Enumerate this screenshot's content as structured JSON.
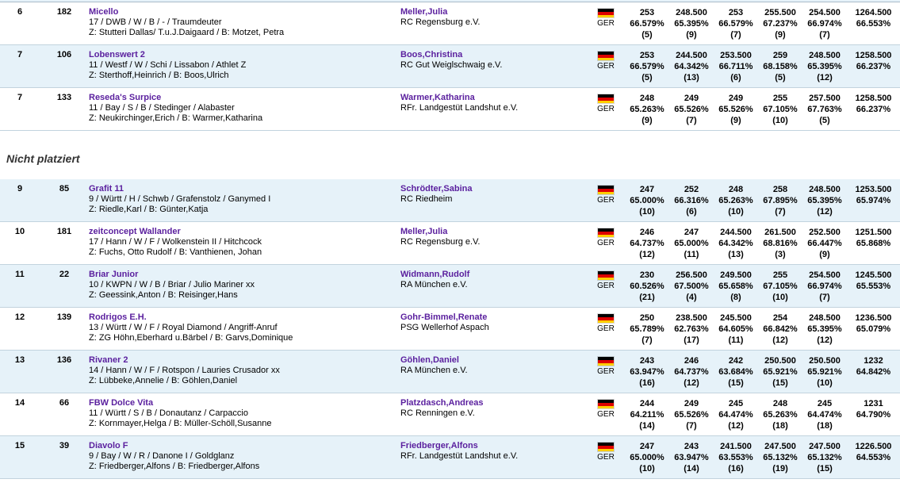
{
  "section_heading": "Nicht platziert",
  "colors": {
    "link_purple": "#5a1f9e",
    "row_shaded_blue": "#e6f2f9",
    "row_border": "#c2d3de",
    "flag_black": "#000000",
    "flag_red": "#dd0000",
    "flag_gold": "#ffce00"
  },
  "icons": {
    "flag": "germany-flag-icon"
  },
  "rows": [
    {
      "section": "placed",
      "shaded": false,
      "rank": "6",
      "number": "182",
      "horse": {
        "name": "Micello",
        "details": "17 / DWB / W / B / - / Traumdeuter",
        "breeding": "Z: Stutteri Dallas/ T.u.J.Daigaard / B: Motzet, Petra"
      },
      "rider": {
        "name": "Meller,Julia",
        "club": "RC Regensburg e.V."
      },
      "country": "GER",
      "scores": [
        {
          "points": "253",
          "percent": "66.579%",
          "rank": "(5)"
        },
        {
          "points": "248.500",
          "percent": "65.395%",
          "rank": "(9)"
        },
        {
          "points": "253",
          "percent": "66.579%",
          "rank": "(7)"
        },
        {
          "points": "255.500",
          "percent": "67.237%",
          "rank": "(9)"
        },
        {
          "points": "254.500",
          "percent": "66.974%",
          "rank": "(7)"
        }
      ],
      "total": {
        "points": "1264.500",
        "percent": "66.553%"
      }
    },
    {
      "section": "placed",
      "shaded": true,
      "rank": "7",
      "number": "106",
      "horse": {
        "name": "Lobenswert 2",
        "details": "11 / Westf / W / Schi / Lissabon / Athlet Z",
        "breeding": "Z: Sterthoff,Heinrich / B: Boos,Ulrich"
      },
      "rider": {
        "name": "Boos,Christina",
        "club": "RC Gut Weiglschwaig e.V."
      },
      "country": "GER",
      "scores": [
        {
          "points": "253",
          "percent": "66.579%",
          "rank": "(5)"
        },
        {
          "points": "244.500",
          "percent": "64.342%",
          "rank": "(13)"
        },
        {
          "points": "253.500",
          "percent": "66.711%",
          "rank": "(6)"
        },
        {
          "points": "259",
          "percent": "68.158%",
          "rank": "(5)"
        },
        {
          "points": "248.500",
          "percent": "65.395%",
          "rank": "(12)"
        }
      ],
      "total": {
        "points": "1258.500",
        "percent": "66.237%"
      }
    },
    {
      "section": "placed",
      "shaded": false,
      "rank": "7",
      "number": "133",
      "horse": {
        "name": "Reseda's Surpice",
        "details": "11 / Bay / S / B / Stedinger / Alabaster",
        "breeding": "Z: Neukirchinger,Erich / B: Warmer,Katharina"
      },
      "rider": {
        "name": "Warmer,Katharina",
        "club": "RFr. Landgestüt Landshut e.V."
      },
      "country": "GER",
      "scores": [
        {
          "points": "248",
          "percent": "65.263%",
          "rank": "(9)"
        },
        {
          "points": "249",
          "percent": "65.526%",
          "rank": "(7)"
        },
        {
          "points": "249",
          "percent": "65.526%",
          "rank": "(9)"
        },
        {
          "points": "255",
          "percent": "67.105%",
          "rank": "(10)"
        },
        {
          "points": "257.500",
          "percent": "67.763%",
          "rank": "(5)"
        }
      ],
      "total": {
        "points": "1258.500",
        "percent": "66.237%"
      }
    },
    {
      "section": "unplaced",
      "shaded": true,
      "rank": "9",
      "number": "85",
      "horse": {
        "name": "Grafit 11",
        "details": "9 / Württ / H / Schwb / Grafenstolz / Ganymed I",
        "breeding": "Z: Riedle,Karl / B: Günter,Katja"
      },
      "rider": {
        "name": "Schrödter,Sabina",
        "club": "RC Riedheim"
      },
      "country": "GER",
      "scores": [
        {
          "points": "247",
          "percent": "65.000%",
          "rank": "(10)"
        },
        {
          "points": "252",
          "percent": "66.316%",
          "rank": "(6)"
        },
        {
          "points": "248",
          "percent": "65.263%",
          "rank": "(10)"
        },
        {
          "points": "258",
          "percent": "67.895%",
          "rank": "(7)"
        },
        {
          "points": "248.500",
          "percent": "65.395%",
          "rank": "(12)"
        }
      ],
      "total": {
        "points": "1253.500",
        "percent": "65.974%"
      }
    },
    {
      "section": "unplaced",
      "shaded": false,
      "rank": "10",
      "number": "181",
      "horse": {
        "name": "zeitconcept Wallander",
        "details": "17 / Hann / W / F / Wolkenstein II / Hitchcock",
        "breeding": "Z: Fuchs, Otto Rudolf / B: Vanthienen, Johan"
      },
      "rider": {
        "name": "Meller,Julia",
        "club": "RC Regensburg e.V."
      },
      "country": "GER",
      "scores": [
        {
          "points": "246",
          "percent": "64.737%",
          "rank": "(12)"
        },
        {
          "points": "247",
          "percent": "65.000%",
          "rank": "(11)"
        },
        {
          "points": "244.500",
          "percent": "64.342%",
          "rank": "(13)"
        },
        {
          "points": "261.500",
          "percent": "68.816%",
          "rank": "(3)"
        },
        {
          "points": "252.500",
          "percent": "66.447%",
          "rank": "(9)"
        }
      ],
      "total": {
        "points": "1251.500",
        "percent": "65.868%"
      }
    },
    {
      "section": "unplaced",
      "shaded": true,
      "rank": "11",
      "number": "22",
      "horse": {
        "name": "Briar Junior",
        "details": "10 / KWPN / W / B / Briar / Julio Mariner xx",
        "breeding": "Z: Geessink,Anton / B: Reisinger,Hans"
      },
      "rider": {
        "name": "Widmann,Rudolf",
        "club": "RA München e.V."
      },
      "country": "GER",
      "scores": [
        {
          "points": "230",
          "percent": "60.526%",
          "rank": "(21)"
        },
        {
          "points": "256.500",
          "percent": "67.500%",
          "rank": "(4)"
        },
        {
          "points": "249.500",
          "percent": "65.658%",
          "rank": "(8)"
        },
        {
          "points": "255",
          "percent": "67.105%",
          "rank": "(10)"
        },
        {
          "points": "254.500",
          "percent": "66.974%",
          "rank": "(7)"
        }
      ],
      "total": {
        "points": "1245.500",
        "percent": "65.553%"
      }
    },
    {
      "section": "unplaced",
      "shaded": false,
      "rank": "12",
      "number": "139",
      "horse": {
        "name": "Rodrigos E.H.",
        "details": "13 / Württ / W / F / Royal Diamond / Angriff-Anruf",
        "breeding": "Z: ZG Höhn,Eberhard u.Bärbel / B: Garvs,Dominique"
      },
      "rider": {
        "name": "Gohr-Bimmel,Renate",
        "club": "PSG Wellerhof Aspach"
      },
      "country": "GER",
      "scores": [
        {
          "points": "250",
          "percent": "65.789%",
          "rank": "(7)"
        },
        {
          "points": "238.500",
          "percent": "62.763%",
          "rank": "(17)"
        },
        {
          "points": "245.500",
          "percent": "64.605%",
          "rank": "(11)"
        },
        {
          "points": "254",
          "percent": "66.842%",
          "rank": "(12)"
        },
        {
          "points": "248.500",
          "percent": "65.395%",
          "rank": "(12)"
        }
      ],
      "total": {
        "points": "1236.500",
        "percent": "65.079%"
      }
    },
    {
      "section": "unplaced",
      "shaded": true,
      "rank": "13",
      "number": "136",
      "horse": {
        "name": "Rivaner 2",
        "details": "14 / Hann / W / F / Rotspon / Lauries Crusador xx",
        "breeding": "Z: Lübbeke,Annelie / B: Göhlen,Daniel"
      },
      "rider": {
        "name": "Göhlen,Daniel",
        "club": "RA München e.V."
      },
      "country": "GER",
      "scores": [
        {
          "points": "243",
          "percent": "63.947%",
          "rank": "(16)"
        },
        {
          "points": "246",
          "percent": "64.737%",
          "rank": "(12)"
        },
        {
          "points": "242",
          "percent": "63.684%",
          "rank": "(15)"
        },
        {
          "points": "250.500",
          "percent": "65.921%",
          "rank": "(15)"
        },
        {
          "points": "250.500",
          "percent": "65.921%",
          "rank": "(10)"
        }
      ],
      "total": {
        "points": "1232",
        "percent": "64.842%"
      }
    },
    {
      "section": "unplaced",
      "shaded": false,
      "rank": "14",
      "number": "66",
      "horse": {
        "name": "FBW Dolce Vita",
        "details": "11 / Württ / S / B / Donautanz / Carpaccio",
        "breeding": "Z: Kornmayer,Helga / B: Müller-Schöll,Susanne"
      },
      "rider": {
        "name": "Platzdasch,Andreas",
        "club": "RC Renningen e.V."
      },
      "country": "GER",
      "scores": [
        {
          "points": "244",
          "percent": "64.211%",
          "rank": "(14)"
        },
        {
          "points": "249",
          "percent": "65.526%",
          "rank": "(7)"
        },
        {
          "points": "245",
          "percent": "64.474%",
          "rank": "(12)"
        },
        {
          "points": "248",
          "percent": "65.263%",
          "rank": "(18)"
        },
        {
          "points": "245",
          "percent": "64.474%",
          "rank": "(18)"
        }
      ],
      "total": {
        "points": "1231",
        "percent": "64.790%"
      }
    },
    {
      "section": "unplaced",
      "shaded": true,
      "rank": "15",
      "number": "39",
      "horse": {
        "name": "Diavolo F",
        "details": "9 / Bay / W / R / Danone I / Goldglanz",
        "breeding": "Z: Friedberger,Alfons / B: Friedberger,Alfons"
      },
      "rider": {
        "name": "Friedberger,Alfons",
        "club": "RFr. Landgestüt Landshut e.V."
      },
      "country": "GER",
      "scores": [
        {
          "points": "247",
          "percent": "65.000%",
          "rank": "(10)"
        },
        {
          "points": "243",
          "percent": "63.947%",
          "rank": "(14)"
        },
        {
          "points": "241.500",
          "percent": "63.553%",
          "rank": "(16)"
        },
        {
          "points": "247.500",
          "percent": "65.132%",
          "rank": "(19)"
        },
        {
          "points": "247.500",
          "percent": "65.132%",
          "rank": "(15)"
        }
      ],
      "total": {
        "points": "1226.500",
        "percent": "64.553%"
      }
    }
  ]
}
